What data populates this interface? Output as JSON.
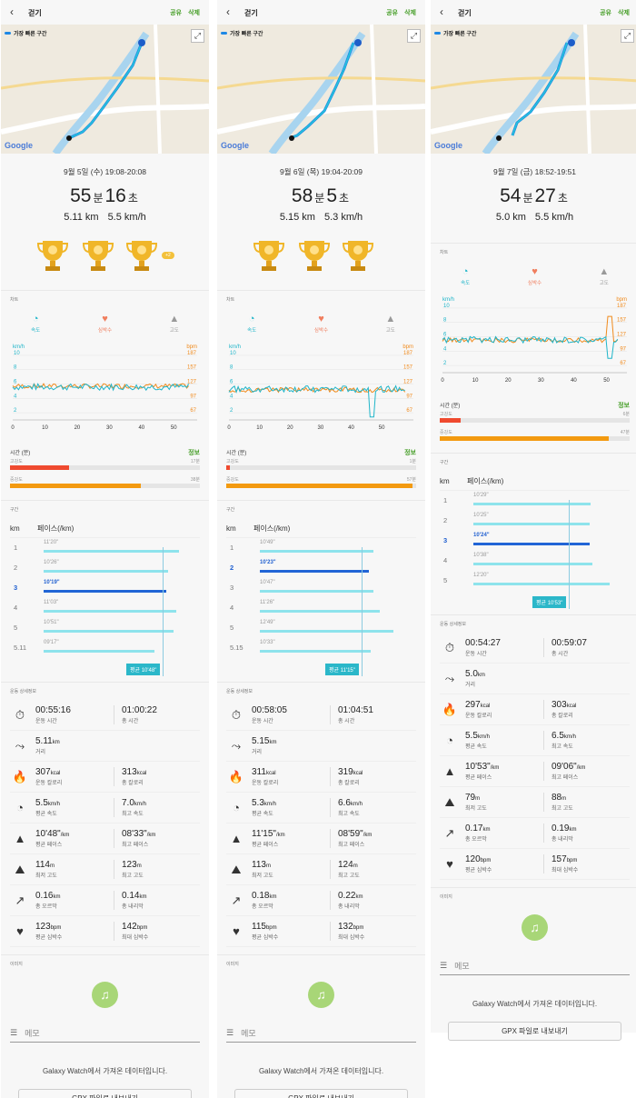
{
  "header": {
    "title": "걷기",
    "share": "공유",
    "delete": "삭제"
  },
  "map": {
    "route_label": "가장 빠른 구간",
    "google": "Google"
  },
  "labels": {
    "chart_section": "차트",
    "tabs": [
      "속도",
      "심박수",
      "고도"
    ],
    "time_min": "시간 (분)",
    "info": "정보",
    "high": "고강도",
    "mid": "중강도",
    "lap_section": "구간",
    "km": "km",
    "pace_head": "페이스(/km)",
    "detail_section": "운동 상세정보",
    "image_section": "이미지",
    "memo": "메모",
    "source": "Galaxy Watch에서 가져온 데이터입니다.",
    "gpx": "GPX 파일로 내보내기",
    "min_unit": "분",
    "sec_unit": "초"
  },
  "workouts": [
    {
      "date": "9월 5일 (수) 19:08-20:08",
      "minutes": "55",
      "seconds": "16",
      "distance": "5.11 km",
      "speed": "5.5 km/h",
      "more_badge": "+2",
      "high_intensity": "17분",
      "mid_intensity": "38분",
      "high_frac": 0.31,
      "mid_frac": 0.69,
      "laps": [
        {
          "km": "1",
          "pace": "11'20\"",
          "frac": 0.99
        },
        {
          "km": "2",
          "pace": "10'26\"",
          "frac": 0.91
        },
        {
          "km": "3",
          "pace": "10'19\"",
          "frac": 0.9,
          "hl": true
        },
        {
          "km": "4",
          "pace": "11'03\"",
          "frac": 0.97
        },
        {
          "km": "5",
          "pace": "10'51\"",
          "frac": 0.95
        },
        {
          "km": "5.11",
          "pace": "09'17\"",
          "frac": 0.81
        }
      ],
      "avg_pace": "평균 10'48\"",
      "stats": [
        {
          "icon": "stopwatch-icon",
          "g": "⏱",
          "a": "00:55:16",
          "au": "",
          "ac": "운동 시간",
          "b": "01:00:22",
          "bu": "",
          "bc": "총 시간"
        },
        {
          "icon": "distance-icon",
          "g": "⤳",
          "a": "5.11",
          "au": "km",
          "ac": "거리",
          "b": "",
          "bu": "",
          "bc": ""
        },
        {
          "icon": "flame-icon",
          "g": "🔥",
          "a": "307",
          "au": "kcal",
          "ac": "운동 칼로리",
          "b": "313",
          "bu": "kcal",
          "bc": "총 칼로리"
        },
        {
          "icon": "speed-icon",
          "g": "◔",
          "a": "5.5",
          "au": "km/h",
          "ac": "평균 속도",
          "b": "7.0",
          "bu": "km/h",
          "bc": "최고 속도"
        },
        {
          "icon": "road-icon",
          "g": "▲",
          "a": "10'48\"",
          "au": "/km",
          "ac": "평균 페이스",
          "b": "08'33\"",
          "bu": "/km",
          "bc": "최고 페이스"
        },
        {
          "icon": "mountain-icon",
          "g": "⛰",
          "a": "114",
          "au": "m",
          "ac": "최저 고도",
          "b": "123",
          "bu": "m",
          "bc": "최고 고도"
        },
        {
          "icon": "arrow-up-right-icon",
          "g": "↗",
          "a": "0.16",
          "au": "km",
          "ac": "총 오르막",
          "b": "0.14",
          "bu": "km",
          "bc": "총 내리막"
        },
        {
          "icon": "heart-rate-icon",
          "g": "♥",
          "a": "123",
          "au": "bpm",
          "ac": "평균 심박수",
          "b": "142",
          "bu": "bpm",
          "bc": "최대 심박수"
        }
      ]
    },
    {
      "date": "9월 6일 (목) 19:04-20:09",
      "minutes": "58",
      "seconds": "5",
      "distance": "5.15 km",
      "speed": "5.3 km/h",
      "more_badge": "",
      "high_intensity": "1분",
      "mid_intensity": "57분",
      "high_frac": 0.02,
      "mid_frac": 0.98,
      "laps": [
        {
          "km": "1",
          "pace": "10'49\"",
          "frac": 0.83
        },
        {
          "km": "2",
          "pace": "10'23\"",
          "frac": 0.8,
          "hl": true
        },
        {
          "km": "3",
          "pace": "10'47\"",
          "frac": 0.83
        },
        {
          "km": "4",
          "pace": "11'26\"",
          "frac": 0.88
        },
        {
          "km": "5",
          "pace": "12'49\"",
          "frac": 0.98
        },
        {
          "km": "5.15",
          "pace": "10'33\"",
          "frac": 0.81
        }
      ],
      "avg_pace": "평균 11'15\"",
      "stats": [
        {
          "icon": "stopwatch-icon",
          "g": "⏱",
          "a": "00:58:05",
          "au": "",
          "ac": "운동 시간",
          "b": "01:04:51",
          "bu": "",
          "bc": "총 시간"
        },
        {
          "icon": "distance-icon",
          "g": "⤳",
          "a": "5.15",
          "au": "km",
          "ac": "거리",
          "b": "",
          "bu": "",
          "bc": ""
        },
        {
          "icon": "flame-icon",
          "g": "🔥",
          "a": "311",
          "au": "kcal",
          "ac": "운동 칼로리",
          "b": "319",
          "bu": "kcal",
          "bc": "총 칼로리"
        },
        {
          "icon": "speed-icon",
          "g": "◔",
          "a": "5.3",
          "au": "km/h",
          "ac": "평균 속도",
          "b": "6.6",
          "bu": "km/h",
          "bc": "최고 속도"
        },
        {
          "icon": "road-icon",
          "g": "▲",
          "a": "11'15\"",
          "au": "/km",
          "ac": "평균 페이스",
          "b": "08'59\"",
          "bu": "/km",
          "bc": "최고 페이스"
        },
        {
          "icon": "mountain-icon",
          "g": "⛰",
          "a": "113",
          "au": "m",
          "ac": "최저 고도",
          "b": "124",
          "bu": "m",
          "bc": "최고 고도"
        },
        {
          "icon": "arrow-up-right-icon",
          "g": "↗",
          "a": "0.18",
          "au": "km",
          "ac": "총 오르막",
          "b": "0.22",
          "bu": "km",
          "bc": "총 내리막"
        },
        {
          "icon": "heart-rate-icon",
          "g": "♥",
          "a": "115",
          "au": "bpm",
          "ac": "평균 심박수",
          "b": "132",
          "bu": "bpm",
          "bc": "최대 심박수"
        }
      ]
    },
    {
      "date": "9월 7일 (금) 18:52-19:51",
      "minutes": "54",
      "seconds": "27",
      "distance": "5.0 km",
      "speed": "5.5 km/h",
      "more_badge": "",
      "high_intensity": "6분",
      "mid_intensity": "47분",
      "high_frac": 0.11,
      "mid_frac": 0.89,
      "laps": [
        {
          "km": "1",
          "pace": "10'29\"",
          "frac": 0.86
        },
        {
          "km": "2",
          "pace": "10'25\"",
          "frac": 0.85
        },
        {
          "km": "3",
          "pace": "10'24\"",
          "frac": 0.85,
          "hl": true
        },
        {
          "km": "4",
          "pace": "10'38\"",
          "frac": 0.87
        },
        {
          "km": "5",
          "pace": "12'20\"",
          "frac": 1.0
        }
      ],
      "avg_pace": "평균 10'53\"",
      "stats": [
        {
          "icon": "stopwatch-icon",
          "g": "⏱",
          "a": "00:54:27",
          "au": "",
          "ac": "운동 시간",
          "b": "00:59:07",
          "bu": "",
          "bc": "총 시간"
        },
        {
          "icon": "distance-icon",
          "g": "⤳",
          "a": "5.0",
          "au": "km",
          "ac": "거리",
          "b": "",
          "bu": "",
          "bc": ""
        },
        {
          "icon": "flame-icon",
          "g": "🔥",
          "a": "297",
          "au": "kcal",
          "ac": "운동 칼로리",
          "b": "303",
          "bu": "kcal",
          "bc": "총 칼로리"
        },
        {
          "icon": "speed-icon",
          "g": "◔",
          "a": "5.5",
          "au": "km/h",
          "ac": "평균 속도",
          "b": "6.5",
          "bu": "km/h",
          "bc": "최고 속도"
        },
        {
          "icon": "road-icon",
          "g": "▲",
          "a": "10'53\"",
          "au": "/km",
          "ac": "평균 페이스",
          "b": "09'06\"",
          "bu": "/km",
          "bc": "최고 페이스"
        },
        {
          "icon": "mountain-icon",
          "g": "⛰",
          "a": "79",
          "au": "m",
          "ac": "최저 고도",
          "b": "88",
          "bu": "m",
          "bc": "최고 고도"
        },
        {
          "icon": "arrow-up-right-icon",
          "g": "↗",
          "a": "0.17",
          "au": "km",
          "ac": "총 오르막",
          "b": "0.19",
          "bu": "km",
          "bc": "총 내리막"
        },
        {
          "icon": "heart-rate-icon",
          "g": "♥",
          "a": "120",
          "au": "bpm",
          "ac": "평균 심박수",
          "b": "157",
          "bu": "bpm",
          "bc": "최대 심박수"
        }
      ]
    }
  ],
  "chart_data": {
    "type": "line",
    "xlabel": "시간 (분)",
    "x_ticks": [
      0,
      10,
      20,
      30,
      40,
      50
    ],
    "y_left_unit": "km/h",
    "y_left_ticks": [
      2,
      4,
      6,
      8,
      10
    ],
    "y_right_unit": "bpm",
    "y_right_ticks": [
      67,
      97,
      127,
      157,
      187
    ],
    "colors": {
      "speed": "#1fb5c9",
      "heart": "#f08a1c"
    },
    "series": [
      {
        "workout": "9월 5일",
        "speed_mean": 5.6,
        "hr_mean": 123,
        "duration_min": 55
      },
      {
        "workout": "9월 6일",
        "speed_mean": 5.3,
        "hr_mean": 115,
        "duration_min": 58
      },
      {
        "workout": "9월 7일",
        "speed_mean": 5.6,
        "hr_mean": 120,
        "duration_min": 54
      }
    ]
  }
}
